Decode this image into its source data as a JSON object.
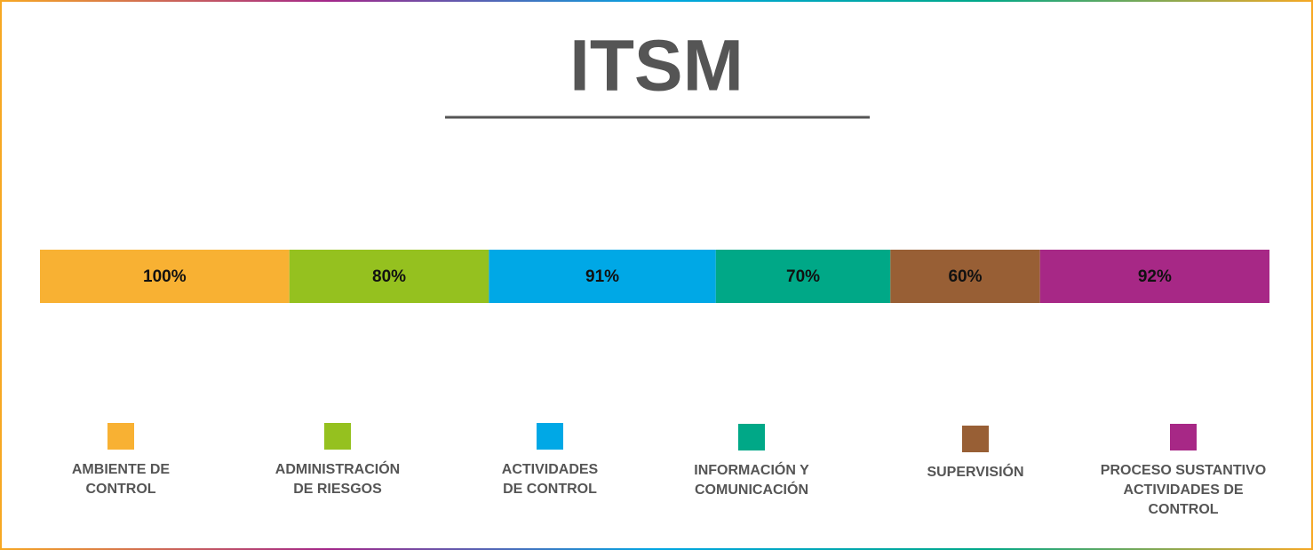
{
  "chart_data": {
    "type": "bar",
    "orientation": "horizontal",
    "stacked": true,
    "title": "ITSM",
    "series": [
      {
        "name": "AMBIENTE DE CONTROL",
        "color": "#f8b133",
        "values": [
          100
        ],
        "value_labels": [
          "100%"
        ]
      },
      {
        "name": "ADMINISTRACIÓN DE RIESGOS",
        "color": "#95c11f",
        "values": [
          80
        ],
        "value_labels": [
          "80%"
        ]
      },
      {
        "name": "ACTIVIDADES DE CONTROL",
        "color": "#00a8e6",
        "values": [
          91
        ],
        "value_labels": [
          "91%"
        ]
      },
      {
        "name": "INFORMACIÓN Y COMUNICACIÓN",
        "color": "#00a887",
        "values": [
          70
        ],
        "value_labels": [
          "70%"
        ]
      },
      {
        "name": "SUPERVISIÓN",
        "color": "#985f35",
        "values": [
          60
        ],
        "value_labels": [
          "60%"
        ]
      },
      {
        "name": "PROCESO SUSTANTIVO ACTIVIDADES DE CONTROL",
        "color": "#a72886",
        "values": [
          92
        ],
        "value_labels": [
          "92%"
        ]
      }
    ]
  }
}
